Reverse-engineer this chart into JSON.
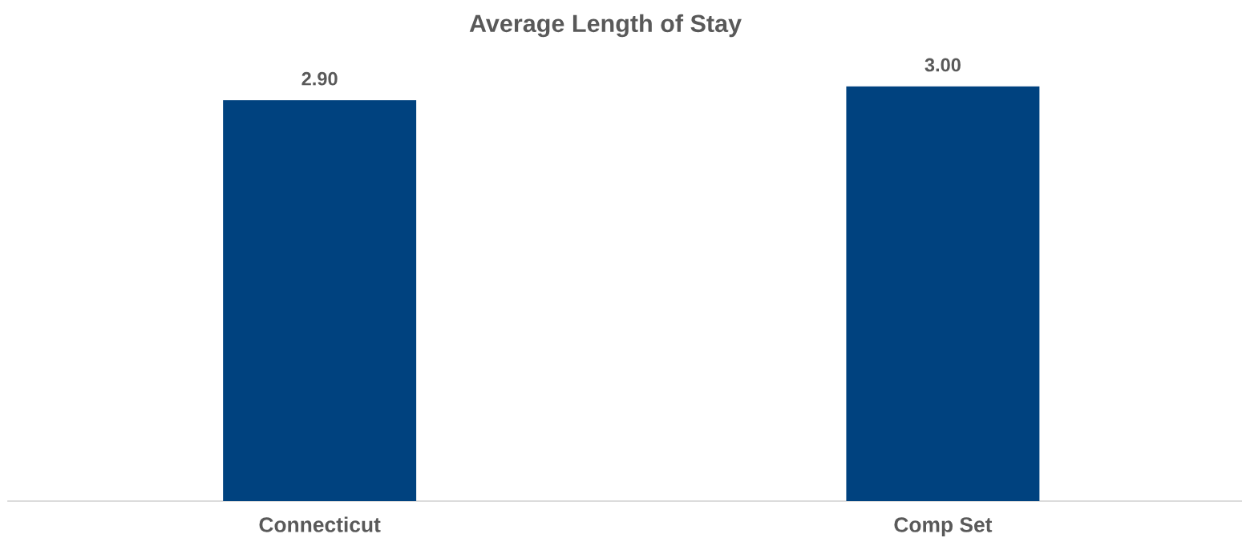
{
  "chart_data": {
    "type": "bar",
    "title": "Average Length of Stay",
    "categories": [
      "Connecticut",
      "Comp Set"
    ],
    "values": [
      2.9,
      3.0
    ],
    "value_labels": [
      "2.90",
      "3.00"
    ],
    "color": "#00427f",
    "tick_labels": "x"
  }
}
